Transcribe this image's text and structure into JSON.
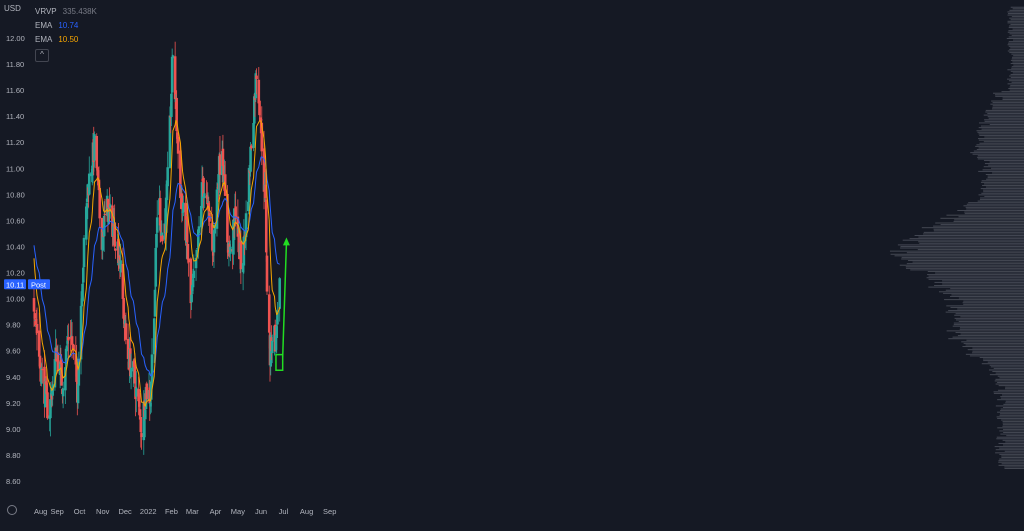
{
  "currency_label": "USD",
  "legend": {
    "vrvp_label": "VRVP",
    "vrvp_value": "335.438K",
    "ema1_label": "EMA",
    "ema1_value": "10.74",
    "ema2_label": "EMA",
    "ema2_value": "10.50",
    "collapse_icon": "^"
  },
  "price_badge": {
    "value": "10.11",
    "label": "Post"
  },
  "colors": {
    "background": "#151924",
    "up": "#26a69a",
    "down": "#ef5350",
    "ema_blue": "#2962ff",
    "ema_orange": "#f7a600",
    "annotation": "#22dd22",
    "badge": "#2962ff",
    "axis_text": "#b2b5be",
    "volume_profile": "#6a6d78"
  },
  "chart_data": {
    "type": "candlestick",
    "ylim": [
      8.45,
      12.3
    ],
    "y_ticks": [
      "12.00",
      "11.80",
      "11.60",
      "11.40",
      "11.20",
      "11.00",
      "10.80",
      "10.60",
      "10.40",
      "10.20",
      "10.00",
      "9.80",
      "9.60",
      "9.40",
      "9.20",
      "9.00",
      "8.80",
      "8.60"
    ],
    "x_ticks": [
      "Aug",
      "Sep",
      "Oct",
      "Nov",
      "Dec",
      "2022",
      "Feb",
      "Mar",
      "Apr",
      "May",
      "Jun",
      "Jul",
      "Aug",
      "Sep"
    ],
    "x_tick_days": [
      0,
      31,
      61,
      92,
      122,
      153,
      184,
      212,
      243,
      273,
      304,
      334,
      365,
      396
    ],
    "waypoints_days": [
      0,
      8,
      20,
      30,
      38,
      48,
      58,
      64,
      72,
      82,
      90,
      98,
      106,
      114,
      124,
      134,
      144,
      150,
      156,
      162,
      166,
      172,
      176,
      180,
      186,
      194,
      198,
      204,
      210,
      218,
      226,
      232,
      240,
      246,
      252,
      258,
      264,
      270,
      278,
      286,
      292,
      298,
      302,
      306,
      310,
      312,
      316,
      320,
      324,
      326,
      329
    ],
    "waypoints_close": [
      10.0,
      9.5,
      9.1,
      9.6,
      9.35,
      9.8,
      9.3,
      10.1,
      10.85,
      11.2,
      10.45,
      10.7,
      10.55,
      10.35,
      9.6,
      9.4,
      9.0,
      9.3,
      9.25,
      10.1,
      10.85,
      10.45,
      10.6,
      11.0,
      11.9,
      11.0,
      10.7,
      10.5,
      9.95,
      10.3,
      10.9,
      10.7,
      10.4,
      10.9,
      11.2,
      10.5,
      10.3,
      10.7,
      10.2,
      10.75,
      11.3,
      11.75,
      11.5,
      11.1,
      10.7,
      10.1,
      9.55,
      9.8,
      9.65,
      9.95,
      10.11
    ],
    "ema_blue_endpoints": {
      "start": 10.45,
      "end": 10.74
    },
    "ema_orange_endpoints": {
      "start": 10.4,
      "end": 10.5
    },
    "annotation": {
      "box_days": [
        324,
        333
      ],
      "box_prices": [
        9.45,
        9.57
      ],
      "arrow_from": [
        333,
        9.55
      ],
      "arrow_to": [
        338,
        10.47
      ]
    }
  }
}
